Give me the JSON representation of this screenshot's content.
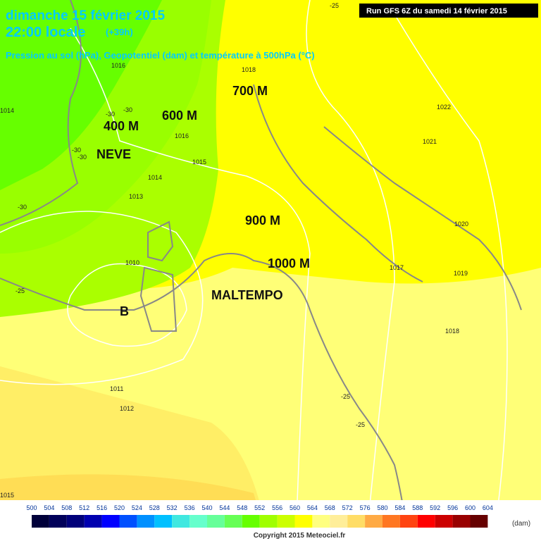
{
  "header": {
    "title": "dimanche 15 février 2015",
    "time": "22:00 locale",
    "lead": "(+39h)",
    "subtitle": "Pression au sol (hPa), Geopotentiel (dam) et température à 500hPa (°C)",
    "run": "Run GFS 6Z du samedi 14 février 2015"
  },
  "annotations": [
    "700 M",
    "600 M",
    "400 M",
    "NEVE",
    "900 M",
    "1000 M",
    "MALTEMPO",
    "B"
  ],
  "isobar_labels": [
    1016,
    1018,
    1022,
    1014,
    1016,
    1015,
    1014,
    1013,
    1021,
    1020,
    1017,
    1019,
    1010,
    1018,
    1011,
    1012,
    1015
  ],
  "temperature_labels": [
    -25,
    -30,
    -30,
    -30,
    -30,
    -30,
    -25,
    -25,
    -25
  ],
  "legend": {
    "labels": [
      500,
      504,
      508,
      512,
      516,
      520,
      524,
      528,
      532,
      536,
      540,
      544,
      548,
      552,
      556,
      560,
      564,
      568,
      572,
      576,
      580,
      584,
      588,
      592,
      596,
      600,
      604
    ],
    "colors": [
      "#00003a",
      "#00005a",
      "#00007a",
      "#0000b0",
      "#0000ff",
      "#0050ff",
      "#0090ff",
      "#00c0ff",
      "#40e8e0",
      "#66ffcc",
      "#66ff99",
      "#66ff55",
      "#66ff00",
      "#a0ff00",
      "#ccff00",
      "#ffff00",
      "#ffff80",
      "#ffee99",
      "#ffdd66",
      "#ffaa44",
      "#ff7722",
      "#ff4411",
      "#ff0000",
      "#cc0000",
      "#990000",
      "#660000"
    ],
    "unit": "(dam)"
  },
  "copyright": "Copyright 2015 Meteociel.fr"
}
